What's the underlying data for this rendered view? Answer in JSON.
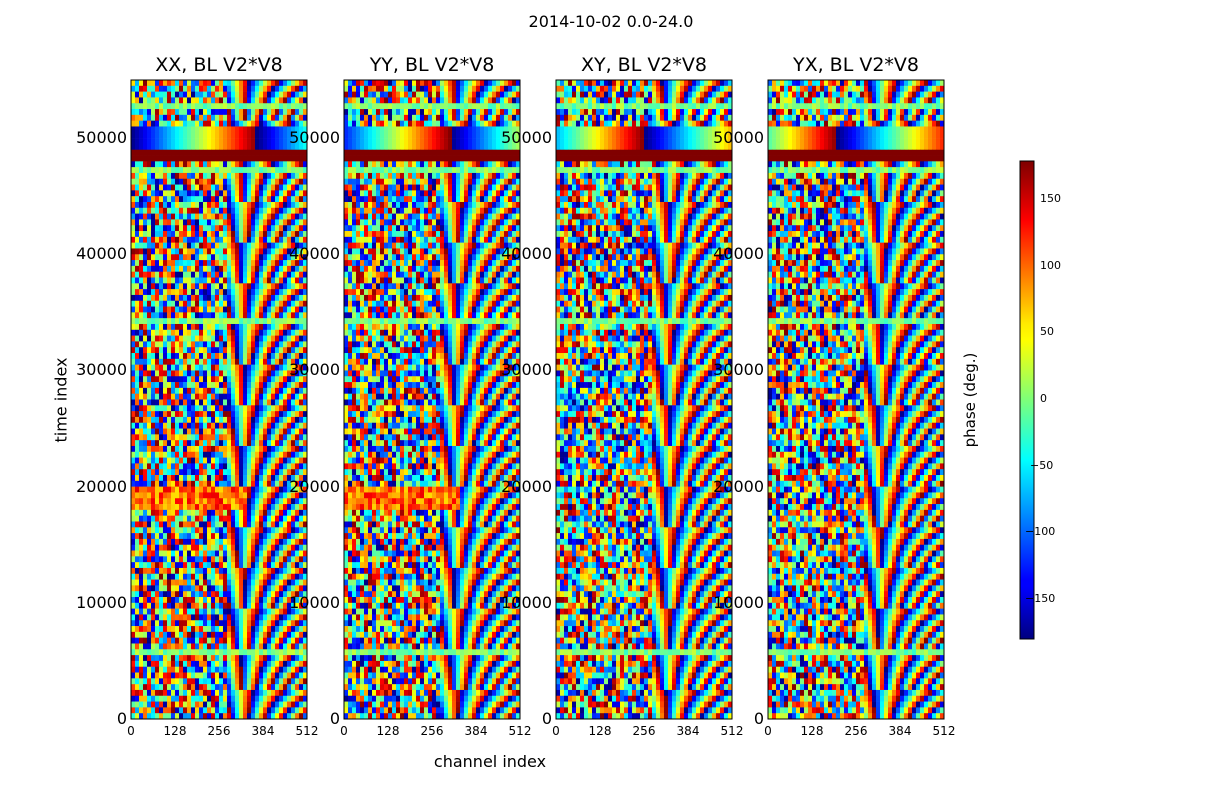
{
  "chart_data": {
    "type": "heatmap",
    "title": "2014-10-02 0.0-24.0",
    "xlabel": "channel index",
    "ylabel": "time index",
    "xlim": [
      0,
      512
    ],
    "ylim": [
      0,
      55000
    ],
    "xticks": [
      0,
      128,
      256,
      384,
      512
    ],
    "yticks": [
      0,
      10000,
      20000,
      30000,
      40000,
      50000
    ],
    "panels": [
      {
        "title": "XX, BL V2*V8"
      },
      {
        "title": "YY, BL V2*V8"
      },
      {
        "title": "XY, BL V2*V8"
      },
      {
        "title": "YX, BL V2*V8"
      }
    ],
    "colorbar": {
      "label": "phase (deg.)",
      "range": [
        -180,
        180
      ],
      "ticks": [
        150,
        100,
        50,
        0,
        -50,
        -100,
        -150
      ],
      "colormap": "jet"
    },
    "features": [
      {
        "description": "saturated band",
        "y_range": [
          47800,
          49000
        ],
        "phase": 180
      },
      {
        "description": "smooth phase ramp",
        "y_range": [
          49200,
          51000
        ]
      }
    ]
  },
  "labels": {
    "suptitle": "2014-10-02 0.0-24.0",
    "xlabel": "channel index",
    "ylabel": "time index",
    "cblabel": "phase (deg.)",
    "yt0": "0",
    "yt1": "10000",
    "yt2": "20000",
    "yt3": "30000",
    "yt4": "40000",
    "yt5": "50000",
    "xt0": "0",
    "xt1": "128",
    "xt2": "256",
    "xt3": "384",
    "xt4": "512",
    "cb150": "150",
    "cb100": "100",
    "cb50": "50",
    "cb0": "0",
    "cbm50": "−50",
    "cbm100": "−100",
    "cbm150": "−150"
  }
}
